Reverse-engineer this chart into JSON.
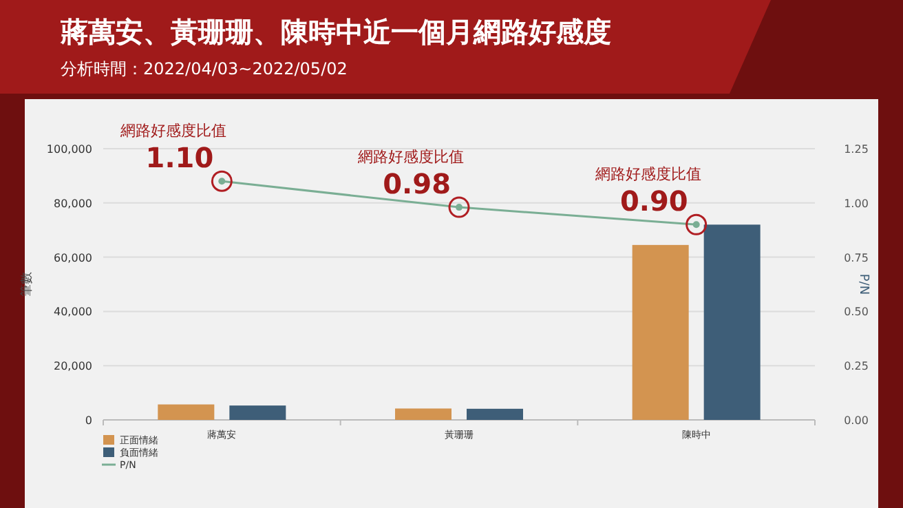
{
  "chart_data": {
    "type": "bar",
    "title": "蔣萬安、黃珊珊、陳時中近一個月網路好感度",
    "subtitle": "分析時間：2022/04/03~2022/05/02",
    "ylabel": "筆數",
    "y2label": "P/N",
    "categories": [
      "蔣萬安",
      "黃珊珊",
      "陳時中"
    ],
    "series": [
      {
        "name": "正面情緒",
        "color": "#d39450",
        "values": [
          5700,
          4200,
          64500
        ]
      },
      {
        "name": "負面情緒",
        "color": "#3e5e78",
        "values": [
          5300,
          4100,
          72000
        ]
      },
      {
        "name": "P/N",
        "type": "line",
        "axis": "y2",
        "color": "#7aae94",
        "values": [
          1.1,
          0.98,
          0.9
        ],
        "value_labels": [
          "1.10",
          "0.98",
          "0.90"
        ]
      }
    ],
    "annotations": [
      "網路好感度比值",
      "網路好感度比值",
      "網路好感度比值"
    ],
    "ylim": [
      0,
      100000
    ],
    "yticks": [
      0,
      {
        "value": 20000,
        "label": "20,000"
      },
      {
        "value": 40000,
        "label": "40,000"
      },
      {
        "value": 60000,
        "label": "60,000"
      },
      {
        "value": 80000,
        "label": "80,000"
      },
      {
        "value": 100000,
        "label": "100,000"
      }
    ],
    "y2lim": [
      0,
      1.25
    ],
    "y2ticks": [
      {
        "value": 0,
        "label": "0.00"
      },
      {
        "value": 0.25,
        "label": "0.25"
      },
      {
        "value": 0.5,
        "label": "0.50"
      },
      {
        "value": 0.75,
        "label": "0.75"
      },
      {
        "value": 1,
        "label": "1.00"
      },
      {
        "value": 1.25,
        "label": "1.25"
      }
    ],
    "grid": "y",
    "legend": "bottom left",
    "marker": "circle"
  }
}
